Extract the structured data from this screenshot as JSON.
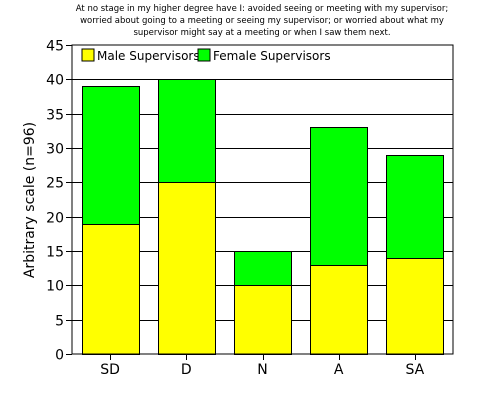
{
  "chart_data": {
    "type": "bar",
    "stacked": true,
    "title_lines": [
      "At no stage in my higher degree have I: avoided seeing or meeting with my supervisor;",
      "worried about going to a meeting or seeing my supervisor; or worried about what my",
      "supervisor might say at a meeting or when I saw them next."
    ],
    "xlabel": "",
    "ylabel": "Arbitrary scale (n=96)",
    "categories": [
      "SD",
      "D",
      "N",
      "A",
      "SA"
    ],
    "ylim": [
      0,
      45
    ],
    "yticks": [
      0,
      5,
      10,
      15,
      20,
      25,
      30,
      35,
      40,
      45
    ],
    "grid": true,
    "legend_position": "top-left",
    "series": [
      {
        "name": "Male Supervisors",
        "color": "#ffff00",
        "values": [
          19,
          25,
          10,
          13,
          14
        ]
      },
      {
        "name": "Female Supervisors",
        "color": "#00ff00",
        "values": [
          20,
          15,
          5,
          20,
          15
        ]
      }
    ]
  }
}
